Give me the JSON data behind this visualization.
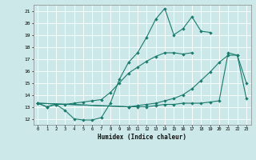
{
  "xlabel": "Humidex (Indice chaleur)",
  "bg_color": "#cce8e8",
  "grid_color": "#ffffff",
  "line_color": "#1a7a6e",
  "xlim": [
    -0.5,
    23.5
  ],
  "ylim": [
    11.5,
    21.5
  ],
  "xticks": [
    0,
    1,
    2,
    3,
    4,
    5,
    6,
    7,
    8,
    9,
    10,
    11,
    12,
    13,
    14,
    15,
    16,
    17,
    18,
    19,
    20,
    21,
    22,
    23
  ],
  "yticks": [
    12,
    13,
    14,
    15,
    16,
    17,
    18,
    19,
    20,
    21
  ],
  "line1_y": [
    13.3,
    13.0,
    13.2,
    12.7,
    12.0,
    11.9,
    11.9,
    12.1,
    13.3,
    15.3,
    16.7,
    17.5,
    18.8,
    20.3,
    21.2,
    19.0,
    19.5,
    20.5,
    19.3,
    19.2,
    null,
    null,
    null,
    null
  ],
  "line2_y": [
    13.3,
    13.0,
    13.2,
    13.2,
    13.3,
    13.4,
    13.5,
    13.6,
    14.2,
    15.0,
    15.8,
    16.3,
    16.8,
    17.2,
    17.5,
    17.5,
    17.4,
    17.5,
    null,
    null,
    null,
    null,
    null,
    null
  ],
  "line3_y": [
    13.3,
    null,
    null,
    null,
    null,
    null,
    null,
    null,
    null,
    null,
    13.0,
    13.0,
    13.0,
    13.1,
    13.2,
    13.2,
    13.3,
    13.3,
    13.3,
    13.4,
    13.5,
    17.5,
    17.3,
    15.0
  ],
  "line4_y": [
    13.3,
    null,
    null,
    null,
    null,
    null,
    null,
    null,
    null,
    null,
    13.0,
    13.1,
    13.2,
    13.3,
    13.5,
    13.7,
    14.0,
    14.5,
    15.2,
    15.9,
    16.7,
    17.3,
    17.3,
    13.7
  ]
}
